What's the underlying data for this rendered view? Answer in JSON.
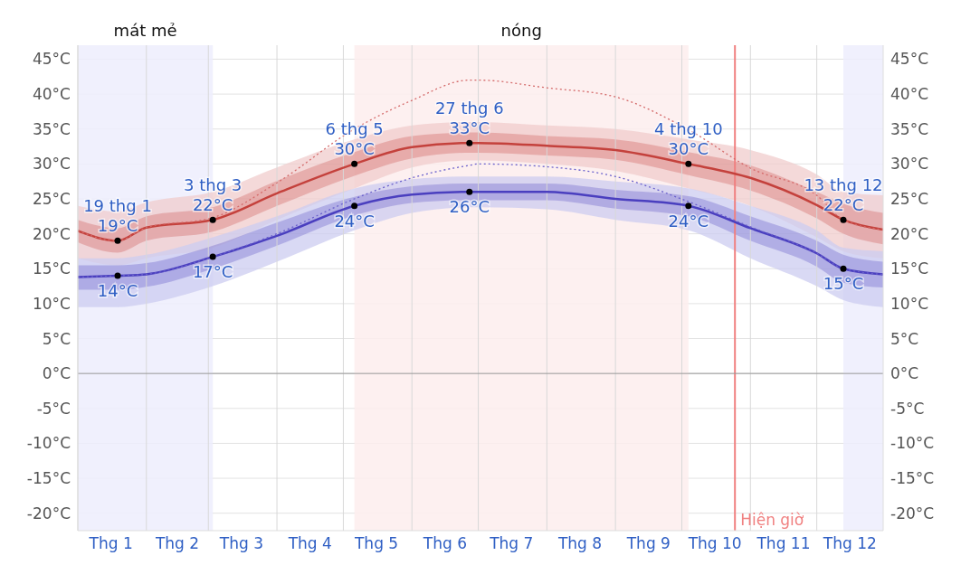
{
  "chart_data": {
    "type": "line",
    "x": [
      "--01-01",
      "--01-19",
      "--02-01",
      "--03-03",
      "--04-01",
      "--05-06",
      "--06-01",
      "--06-27",
      "--07-01",
      "--08-01",
      "--09-01",
      "--10-04",
      "--11-01",
      "--12-01",
      "--12-13",
      "--12-31"
    ],
    "xlim": [
      "--01-01",
      "--12-31"
    ],
    "xticks": [
      {
        "value": "--01-01",
        "label": null
      },
      {
        "value": "--01-16",
        "label": "Thg 1"
      },
      {
        "value": "--02-01",
        "label": null
      },
      {
        "value": "--02-15",
        "label": "Thg 2"
      },
      {
        "value": "--03-01",
        "label": null
      },
      {
        "value": "--03-16",
        "label": "Thg 3"
      },
      {
        "value": "--04-01",
        "label": null
      },
      {
        "value": "--04-16",
        "label": "Thg 4"
      },
      {
        "value": "--05-01",
        "label": null
      },
      {
        "value": "--05-16",
        "label": "Thg 5"
      },
      {
        "value": "--06-01",
        "label": null
      },
      {
        "value": "--06-16",
        "label": "Thg 6"
      },
      {
        "value": "--07-01",
        "label": null
      },
      {
        "value": "--07-16",
        "label": "Thg 7"
      },
      {
        "value": "--08-01",
        "label": null
      },
      {
        "value": "--08-16",
        "label": "Thg 8"
      },
      {
        "value": "--09-01",
        "label": null
      },
      {
        "value": "--09-16",
        "label": "Thg 9"
      },
      {
        "value": "--10-01",
        "label": null
      },
      {
        "value": "--10-16",
        "label": "Thg 10"
      },
      {
        "value": "--11-01",
        "label": null
      },
      {
        "value": "--11-16",
        "label": "Thg 11"
      },
      {
        "value": "--12-01",
        "label": null
      },
      {
        "value": "--12-16",
        "label": "Thg 12"
      }
    ],
    "ylim": [
      -22.5,
      47
    ],
    "yticks": [
      {
        "value": -20,
        "label": "-20°C"
      },
      {
        "value": -15,
        "label": "-15°C"
      },
      {
        "value": -10,
        "label": "-10°C"
      },
      {
        "value": -5,
        "label": "-5°C"
      },
      {
        "value": 0,
        "label": "0°C"
      },
      {
        "value": 5,
        "label": "5°C"
      },
      {
        "value": 10,
        "label": "10°C"
      },
      {
        "value": 15,
        "label": "15°C"
      },
      {
        "value": 20,
        "label": "20°C"
      },
      {
        "value": 25,
        "label": "25°C"
      },
      {
        "value": 30,
        "label": "30°C"
      },
      {
        "value": 35,
        "label": "35°C"
      },
      {
        "value": 40,
        "label": "40°C"
      },
      {
        "value": 45,
        "label": "45°C"
      }
    ],
    "y2lim": [
      -22.5,
      47
    ],
    "y2ticks": [
      {
        "value": -20,
        "label": "-20°C"
      },
      {
        "value": -15,
        "label": "-15°C"
      },
      {
        "value": -10,
        "label": "-10°C"
      },
      {
        "value": -5,
        "label": "-5°C"
      },
      {
        "value": 0,
        "label": "0°C"
      },
      {
        "value": 5,
        "label": "5°C"
      },
      {
        "value": 10,
        "label": "10°C"
      },
      {
        "value": 15,
        "label": "15°C"
      },
      {
        "value": 20,
        "label": "20°C"
      },
      {
        "value": 25,
        "label": "25°C"
      },
      {
        "value": 30,
        "label": "30°C"
      },
      {
        "value": 35,
        "label": "35°C"
      },
      {
        "value": 40,
        "label": "40°C"
      },
      {
        "value": 45,
        "label": "45°C"
      }
    ],
    "grid": true,
    "series": [
      {
        "type": "area",
        "color": "#f0cccc",
        "values": [
          null,
          null,
          null,
          null,
          null,
          null,
          null,
          null,
          null,
          null,
          null,
          null,
          null,
          null,
          null,
          null
        ],
        "lower": [
          16.5,
          15.5,
          16.5,
          18,
          22,
          26.5,
          29.5,
          30.5,
          30.5,
          30,
          29,
          26.5,
          24,
          19.5,
          17.5,
          16.5
        ],
        "upper": [
          24,
          23.2,
          24.5,
          26,
          29.5,
          33.5,
          35.5,
          36,
          36,
          35.5,
          35,
          33.5,
          32,
          28.5,
          26,
          25.5
        ]
      },
      {
        "type": "area",
        "color": "#ccccf0",
        "values": [
          null,
          null,
          null,
          null,
          null,
          null,
          null,
          null,
          null,
          null,
          null,
          null,
          null,
          null,
          null,
          null
        ],
        "lower": [
          9.5,
          9.5,
          10,
          12.5,
          16,
          20.5,
          23,
          23.8,
          23.8,
          23.5,
          22,
          20.5,
          16.5,
          12.5,
          10.5,
          9.5
        ],
        "upper": [
          16.5,
          16.5,
          17,
          19.5,
          22.5,
          26.5,
          27.8,
          28.2,
          28.2,
          28.2,
          27.5,
          26.5,
          24,
          20.5,
          18,
          17.5
        ]
      },
      {
        "color": "#c4413c",
        "values": [
          20.4,
          19,
          20.9,
          22,
          25.8,
          30,
          32.4,
          33,
          33,
          32.6,
          32,
          30,
          28,
          24.1,
          22,
          20.6
        ],
        "lower": [
          18.8,
          17.3,
          19,
          20.3,
          24,
          28.3,
          30.8,
          31.6,
          31.6,
          31.2,
          30.6,
          28.4,
          26.2,
          22.2,
          20,
          18.5
        ],
        "upper": [
          22,
          20.8,
          22.5,
          23.8,
          27.6,
          31.7,
          34,
          34.5,
          34.5,
          34,
          33.5,
          31.7,
          29.8,
          26,
          24.3,
          23
        ]
      },
      {
        "color": "#4a3fbf",
        "values": [
          13.8,
          14,
          14.2,
          16.7,
          19.7,
          24,
          25.6,
          26,
          26,
          26,
          25,
          24,
          20.8,
          17.2,
          15,
          14.2
        ],
        "lower": [
          12,
          12,
          12.4,
          15,
          18.3,
          22.6,
          24.4,
          24.8,
          24.8,
          24.8,
          23.6,
          22.5,
          19,
          15.3,
          13,
          12.3
        ],
        "upper": [
          15.5,
          15.5,
          15.8,
          18.3,
          21.6,
          25.3,
          26.8,
          27.2,
          27.2,
          27.2,
          26.3,
          25.4,
          22.5,
          19,
          17,
          16
        ]
      },
      {
        "color": "#d46a6a",
        "line_style": "dotted",
        "values": [
          20.4,
          19,
          20.9,
          22.3,
          27.3,
          35,
          39.1,
          42,
          42,
          40.9,
          39.6,
          34.9,
          29.4,
          25.5,
          22,
          20.6
        ]
      },
      {
        "color": "#6a60cc",
        "line_style": "dotted",
        "values": [
          13.8,
          14,
          14.2,
          16.7,
          20,
          25,
          28,
          29.8,
          30,
          29.6,
          28.2,
          24.6,
          21,
          17.2,
          15,
          14.2
        ]
      }
    ],
    "bands": [
      {
        "axis": "x",
        "from": "--01-01",
        "to": "--03-03",
        "label": "mát mẻ",
        "color": "#ededfd"
      },
      {
        "axis": "x",
        "from": "--05-06",
        "to": "--10-04",
        "label": "nóng",
        "color": "#fdeded"
      },
      {
        "axis": "x",
        "from": "--12-13",
        "to": "--12-31",
        "color": "#ededfd"
      }
    ],
    "ref_lines": [
      {
        "axis": "x",
        "value": "--10-25",
        "label": "Hiện giờ",
        "color": "#f08080"
      },
      {
        "axis": "y",
        "value": 0,
        "color": "#999999"
      }
    ],
    "annotations": [
      {
        "text": "19 thg 1\n19°C",
        "x": "--01-19",
        "y": 19
      },
      {
        "text": "14°C",
        "x": "--01-19",
        "y": 14
      },
      {
        "text": "3 thg 3\n22°C",
        "x": "--03-03",
        "y": 22
      },
      {
        "text": "17°C",
        "x": "--03-03",
        "y": 16.7
      },
      {
        "text": "6 thg 5\n30°C",
        "x": "--05-06",
        "y": 30
      },
      {
        "text": "24°C",
        "x": "--05-06",
        "y": 24
      },
      {
        "text": "27 thg 6\n33°C",
        "x": "--06-27",
        "y": 33
      },
      {
        "text": "26°C",
        "x": "--06-27",
        "y": 26
      },
      {
        "text": "4 thg 10\n30°C",
        "x": "--10-04",
        "y": 30
      },
      {
        "text": "24°C",
        "x": "--10-04",
        "y": 24
      },
      {
        "text": "13 thg 12\n22°C",
        "x": "--12-13",
        "y": 22
      },
      {
        "text": "15°C",
        "x": "--12-13",
        "y": 15
      }
    ]
  }
}
